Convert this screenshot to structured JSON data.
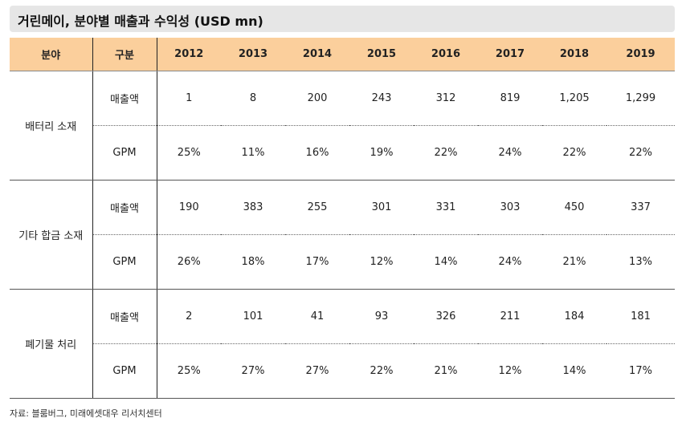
{
  "title": "거린메이, 분야별 매출과 수익성 (USD mn)",
  "headers": [
    "분야",
    "구분",
    "2012",
    "2013",
    "2014",
    "2015",
    "2016",
    "2017",
    "2018",
    "2019"
  ],
  "groups": [
    {
      "field": "배터리 소재",
      "rows": [
        {
          "label": "매출액",
          "values": [
            "1",
            "8",
            "200",
            "243",
            "312",
            "819",
            "1,205",
            "1,299"
          ]
        },
        {
          "label": "GPM",
          "values": [
            "25%",
            "11%",
            "16%",
            "19%",
            "22%",
            "24%",
            "22%",
            "22%"
          ]
        }
      ]
    },
    {
      "field": "기타 합금 소재",
      "rows": [
        {
          "label": "매출액",
          "values": [
            "190",
            "383",
            "255",
            "301",
            "331",
            "303",
            "450",
            "337"
          ]
        },
        {
          "label": "GPM",
          "values": [
            "26%",
            "18%",
            "17%",
            "12%",
            "14%",
            "24%",
            "21%",
            "13%"
          ]
        }
      ]
    },
    {
      "field": "폐기물 처리",
      "rows": [
        {
          "label": "매출액",
          "values": [
            "2",
            "101",
            "41",
            "93",
            "326",
            "211",
            "184",
            "181"
          ]
        },
        {
          "label": "GPM",
          "values": [
            "25%",
            "27%",
            "27%",
            "22%",
            "21%",
            "12%",
            "14%",
            "17%"
          ]
        }
      ]
    }
  ],
  "source": "자료: 블룸버그, 미래에셋대우 리서치센터",
  "colors": {
    "header_bg": "#fbcf9c",
    "title_bg": "#e6e6e6"
  }
}
